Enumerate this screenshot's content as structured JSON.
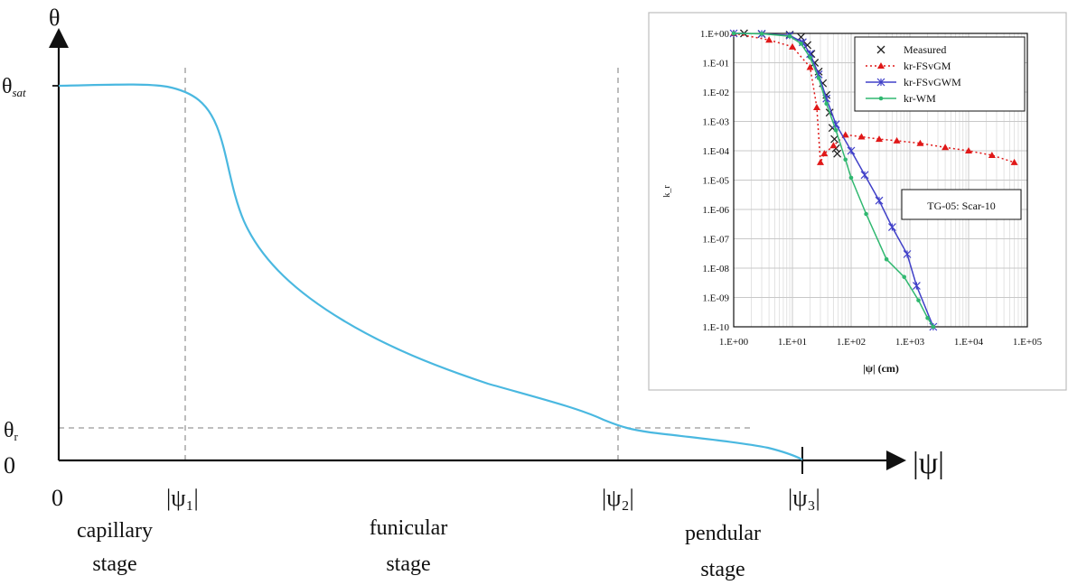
{
  "chart_data": [
    {
      "type": "line",
      "y_axis_symbol": "θ",
      "x_axis_symbol": "|ψ|",
      "y_ticks": [
        {
          "sym": "θ",
          "sub": "sat",
          "value": "sat"
        },
        {
          "sym": "θ",
          "sub": "r",
          "value": "r"
        },
        {
          "label": "0",
          "value": 0
        }
      ],
      "x_ticks": [
        {
          "label": "0",
          "value": 0
        },
        {
          "label": "|ψ₁|",
          "value": 1
        },
        {
          "label": "|ψ₂|",
          "value": 2
        },
        {
          "label": "|ψ₃|",
          "value": 3
        }
      ],
      "stages": [
        {
          "line1": "capillary",
          "line2": "stage"
        },
        {
          "line1": "funicular",
          "line2": "stage"
        },
        {
          "line1": "pendular",
          "line2": "stage"
        }
      ],
      "curve_color": "#4ab8e0",
      "grid": false
    },
    {
      "type": "line",
      "xscale": "log",
      "yscale": "log",
      "xlim": [
        1,
        100000
      ],
      "ylim": [
        1e-10,
        1
      ],
      "xlabel": "|ψ| (cm)",
      "ylabel": "k_r",
      "x_tick_labels": [
        "1.E+00",
        "1.E+01",
        "1.E+02",
        "1.E+03",
        "1.E+04",
        "1.E+05"
      ],
      "y_tick_labels": [
        "1.E+00",
        "1.E-01",
        "1.E-02",
        "1.E-03",
        "1.E-04",
        "1.E-05",
        "1.E-06",
        "1.E-07",
        "1.E-08",
        "1.E-09",
        "1.E-10"
      ],
      "annotation": "TG-05: Scar-10",
      "grid": true,
      "legend_position": "top-right",
      "series": [
        {
          "name": "Measured",
          "color": "#222222",
          "marker": "x",
          "line": "none",
          "points": [
            [
              1.5,
              1
            ],
            [
              3,
              0.95
            ],
            [
              9,
              0.9
            ],
            [
              14,
              0.75
            ],
            [
              18,
              0.4
            ],
            [
              21,
              0.2
            ],
            [
              24,
              0.1
            ],
            [
              28,
              0.05
            ],
            [
              33,
              0.02
            ],
            [
              38,
              0.008
            ],
            [
              43,
              0.002
            ],
            [
              48,
              0.0006
            ],
            [
              52,
              0.00025
            ],
            [
              55,
              0.00012
            ],
            [
              58,
              8e-05
            ]
          ]
        },
        {
          "name": "kr-FSvGM",
          "color": "#e01818",
          "marker": "triangle",
          "line": "dotted",
          "points": [
            [
              1,
              1
            ],
            [
              4,
              0.6
            ],
            [
              10,
              0.35
            ],
            [
              20,
              0.07
            ],
            [
              26,
              0.003
            ],
            [
              30,
              4e-05
            ],
            [
              35,
              8e-05
            ],
            [
              50,
              0.00015
            ],
            [
              80,
              0.00035
            ],
            [
              150,
              0.0003
            ],
            [
              300,
              0.00025
            ],
            [
              600,
              0.00022
            ],
            [
              1500,
              0.00018
            ],
            [
              4000,
              0.00013
            ],
            [
              10000,
              0.0001
            ],
            [
              25000,
              7e-05
            ],
            [
              60000,
              4e-05
            ]
          ]
        },
        {
          "name": "kr-FSvGWM",
          "color": "#4040c8",
          "marker": "star",
          "line": "solid",
          "points": [
            [
              1,
              1
            ],
            [
              3,
              0.97
            ],
            [
              9,
              0.85
            ],
            [
              15,
              0.5
            ],
            [
              20,
              0.2
            ],
            [
              28,
              0.04
            ],
            [
              38,
              0.006
            ],
            [
              55,
              0.0008
            ],
            [
              100,
              0.0001
            ],
            [
              170,
              1.5e-05
            ],
            [
              300,
              2e-06
            ],
            [
              500,
              2.5e-07
            ],
            [
              900,
              3e-08
            ],
            [
              1300,
              2.5e-09
            ],
            [
              2500,
              1e-10
            ]
          ]
        },
        {
          "name": "kr-WM",
          "color": "#30b870",
          "marker": "dot",
          "line": "solid",
          "points": [
            [
              1,
              1
            ],
            [
              3,
              0.97
            ],
            [
              9,
              0.8
            ],
            [
              14,
              0.45
            ],
            [
              20,
              0.15
            ],
            [
              28,
              0.03
            ],
            [
              38,
              0.004
            ],
            [
              55,
              0.0005
            ],
            [
              80,
              5e-05
            ],
            [
              100,
              1.2e-05
            ],
            [
              180,
              7e-07
            ],
            [
              400,
              2e-08
            ],
            [
              800,
              5e-09
            ],
            [
              1400,
              8e-10
            ],
            [
              2000,
              2e-10
            ],
            [
              2500,
              1e-10
            ]
          ]
        }
      ]
    }
  ]
}
